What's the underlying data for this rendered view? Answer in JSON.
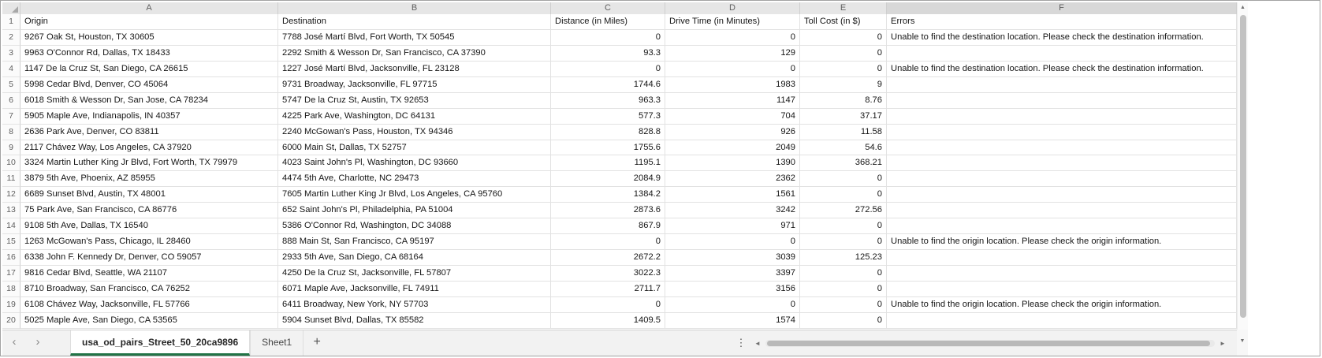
{
  "sheet": {
    "column_letters": [
      "A",
      "B",
      "C",
      "D",
      "E",
      "F"
    ],
    "rows": [
      {
        "n": 1,
        "cells": [
          "Origin",
          "Destination",
          "Distance (in Miles)",
          "Drive Time (in Minutes)",
          "Toll Cost (in $)",
          "Errors"
        ]
      },
      {
        "n": 2,
        "cells": [
          "9267 Oak St, Houston, TX 30605",
          "7788 José Martí Blvd, Fort Worth, TX 50545",
          "0",
          "0",
          "0",
          "Unable to find the destination location. Please check the destination information."
        ]
      },
      {
        "n": 3,
        "cells": [
          "9963 O'Connor Rd, Dallas, TX 18433",
          "2292 Smith & Wesson Dr, San Francisco, CA 37390",
          "93.3",
          "129",
          "0",
          ""
        ]
      },
      {
        "n": 4,
        "cells": [
          "1147 De la Cruz St, San Diego, CA 26615",
          "1227 José Martí Blvd, Jacksonville, FL 23128",
          "0",
          "0",
          "0",
          "Unable to find the destination location. Please check the destination information."
        ]
      },
      {
        "n": 5,
        "cells": [
          "5998 Cedar Blvd, Denver, CO 45064",
          "9731 Broadway, Jacksonville, FL 97715",
          "1744.6",
          "1983",
          "9",
          ""
        ]
      },
      {
        "n": 6,
        "cells": [
          "6018 Smith & Wesson Dr, San Jose, CA 78234",
          "5747 De la Cruz St, Austin, TX 92653",
          "963.3",
          "1147",
          "8.76",
          ""
        ]
      },
      {
        "n": 7,
        "cells": [
          "5905 Maple Ave, Indianapolis, IN 40357",
          "4225 Park Ave, Washington, DC 64131",
          "577.3",
          "704",
          "37.17",
          ""
        ]
      },
      {
        "n": 8,
        "cells": [
          "2636 Park Ave, Denver, CO 83811",
          "2240 McGowan's Pass, Houston, TX 94346",
          "828.8",
          "926",
          "11.58",
          ""
        ]
      },
      {
        "n": 9,
        "cells": [
          "2117 Chávez Way, Los Angeles, CA 37920",
          "6000 Main St, Dallas, TX 52757",
          "1755.6",
          "2049",
          "54.6",
          ""
        ]
      },
      {
        "n": 10,
        "cells": [
          "3324 Martin Luther King Jr Blvd, Fort Worth, TX 79979",
          "4023 Saint John's Pl, Washington, DC 93660",
          "1195.1",
          "1390",
          "368.21",
          ""
        ]
      },
      {
        "n": 11,
        "cells": [
          "3879 5th Ave, Phoenix, AZ 85955",
          "4474 5th Ave, Charlotte, NC 29473",
          "2084.9",
          "2362",
          "0",
          ""
        ]
      },
      {
        "n": 12,
        "cells": [
          "6689 Sunset Blvd, Austin, TX 48001",
          "7605 Martin Luther King Jr Blvd, Los Angeles, CA 95760",
          "1384.2",
          "1561",
          "0",
          ""
        ]
      },
      {
        "n": 13,
        "cells": [
          "75 Park Ave, San Francisco, CA 86776",
          "652 Saint John's Pl, Philadelphia, PA 51004",
          "2873.6",
          "3242",
          "272.56",
          ""
        ]
      },
      {
        "n": 14,
        "cells": [
          "9108 5th Ave, Dallas, TX 16540",
          "5386 O'Connor Rd, Washington, DC 34088",
          "867.9",
          "971",
          "0",
          ""
        ]
      },
      {
        "n": 15,
        "cells": [
          "1263 McGowan's Pass, Chicago, IL 28460",
          "888 Main St, San Francisco, CA 95197",
          "0",
          "0",
          "0",
          "Unable to find the origin location. Please check the origin information."
        ]
      },
      {
        "n": 16,
        "cells": [
          "6338 John F. Kennedy Dr, Denver, CO 59057",
          "2933 5th Ave, San Diego, CA 68164",
          "2672.2",
          "3039",
          "125.23",
          ""
        ]
      },
      {
        "n": 17,
        "cells": [
          "9816 Cedar Blvd, Seattle, WA 21107",
          "4250 De la Cruz St, Jacksonville, FL 57807",
          "3022.3",
          "3397",
          "0",
          ""
        ]
      },
      {
        "n": 18,
        "cells": [
          "8710 Broadway, San Francisco, CA 76252",
          "6071 Maple Ave, Jacksonville, FL 74911",
          "2711.7",
          "3156",
          "0",
          ""
        ]
      },
      {
        "n": 19,
        "cells": [
          "6108 Chávez Way, Jacksonville, FL 57766",
          "6411 Broadway, New York, NY 57703",
          "0",
          "0",
          "0",
          "Unable to find the origin location. Please check the origin information."
        ]
      },
      {
        "n": 20,
        "cells": [
          "5025 Maple Ave, San Diego, CA 53565",
          "5904 Sunset Blvd, Dallas, TX 85582",
          "1409.5",
          "1574",
          "0",
          ""
        ]
      }
    ]
  },
  "tab_bar": {
    "tabs": [
      {
        "label": "usa_od_pairs_Street_50_20ca9896",
        "active": true
      },
      {
        "label": "Sheet1",
        "active": false
      }
    ],
    "add_tab_label": "+"
  },
  "icons": {
    "prev": "‹",
    "next": "›",
    "more": "⋮",
    "up": "▲",
    "down": "▼",
    "left": "◄",
    "right": "►"
  },
  "colors": {
    "accent_green": "#217346"
  }
}
